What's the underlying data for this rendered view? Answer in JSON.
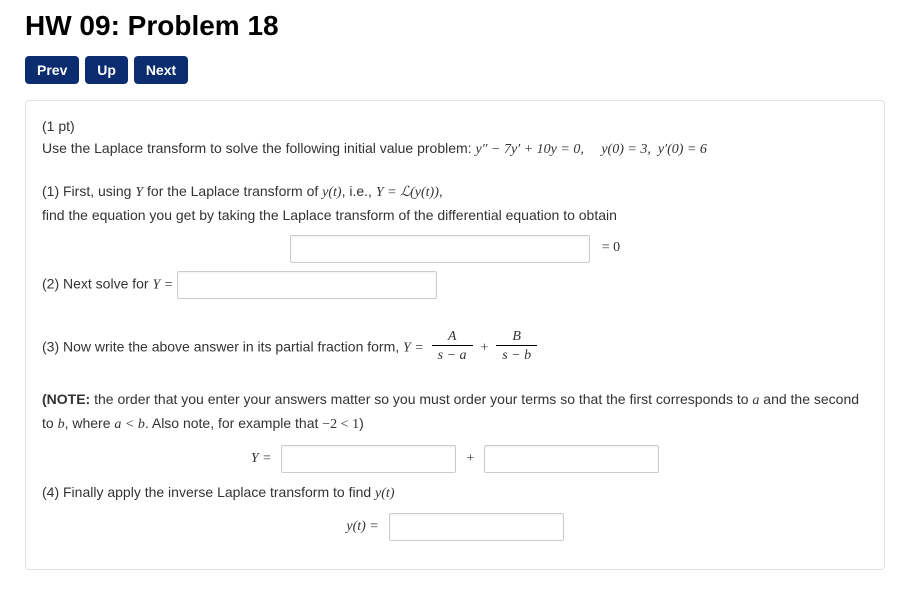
{
  "header": {
    "title": "HW 09: Problem 18"
  },
  "nav": {
    "prev": "Prev",
    "up": "Up",
    "next": "Next"
  },
  "problem": {
    "points_label": "(1 pt)",
    "intro_text": "Use the Laplace transform to solve the following initial value problem: ",
    "ivp_equation": "y″ − 7y′ + 10y = 0,  y(0) = 3, y′(0) = 6",
    "part1_line1_pre": "(1) First, using ",
    "part1_Y": "Y",
    "part1_line1_mid": " for the Laplace transform of ",
    "part1_yt": "y(t)",
    "part1_line1_mid2": ", i.e., ",
    "part1_eq": "Y = ℒ(y(t))",
    "part1_line1_end": ",",
    "part1_line2": "find the equation you get by taking the Laplace transform of the differential equation to obtain",
    "eq_zero": "= 0",
    "part2_pre": "(2) Next solve for ",
    "part2_Y": "Y =",
    "part3_text": "(3) Now write the above answer in its partial fraction form, ",
    "part3_Y": "Y =",
    "frac1_num": "A",
    "frac1_den": "s − a",
    "plus": "+",
    "frac2_num": "B",
    "frac2_den": "s − b",
    "note_bold": "(NOTE:",
    "note_text1": " the order that you enter your answers matter so you must order your terms so that the first corresponds to ",
    "note_a": "a",
    "note_text2": " and the second to ",
    "note_b": "b",
    "note_text3": ", where ",
    "note_ineq": "a < b",
    "note_text4": ". Also note, for example that ",
    "note_ex": "−2 < 1",
    "note_text5": ")",
    "part3_answer_label": "Y =",
    "part4_text_pre": "(4) Finally apply the inverse Laplace transform to find ",
    "part4_yt": "y(t)",
    "part4_answer_label": "y(t) ="
  },
  "colors": {
    "button_bg": "#0b2d6f",
    "border": "#e0e0e0",
    "text": "#333333"
  }
}
